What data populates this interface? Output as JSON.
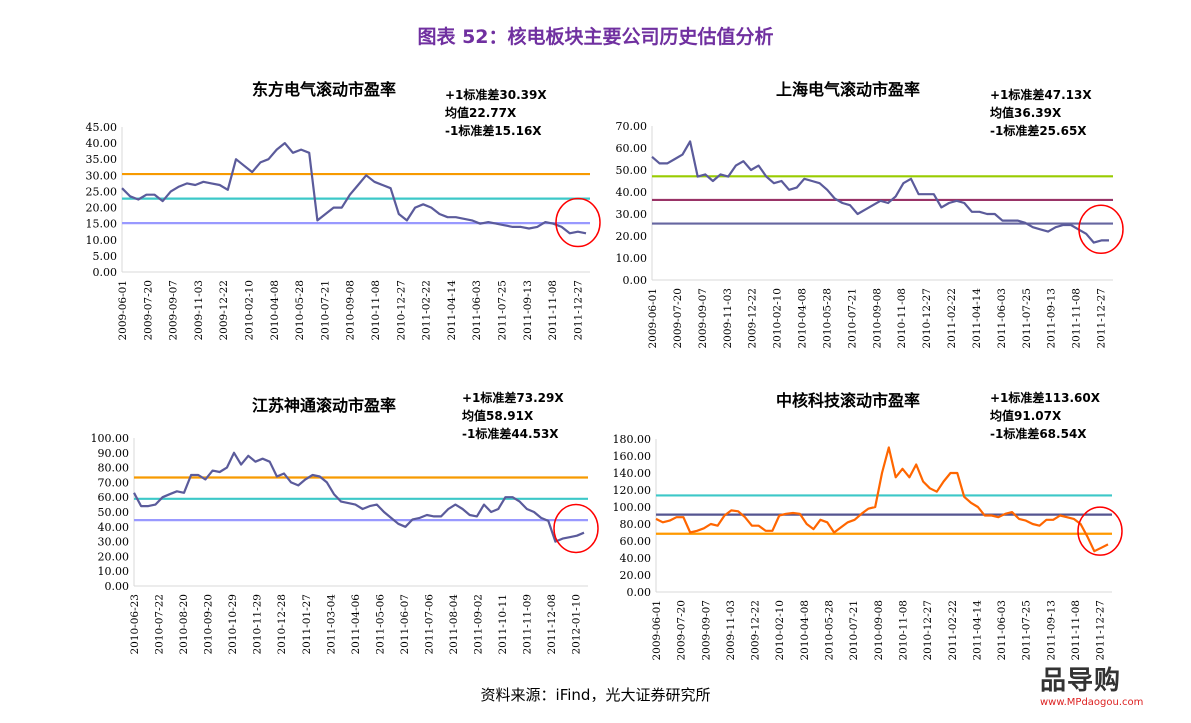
{
  "title": "图表 52：核电板块主要公司历史估值分析",
  "source": "资料来源：iFind，光大证券研究所",
  "watermark": {
    "logo": "品导购",
    "url": "www.MPdaogou.com"
  },
  "chart_data": [
    {
      "type": "line",
      "title": "东方电气滚动市盈率",
      "annotations": [
        "+1标准差30.39X",
        "均值22.77X",
        "-1标准差15.16X"
      ],
      "ylim": [
        0,
        45
      ],
      "ystep": 5,
      "x_ticks": [
        "2009-06-01",
        "2009-07-20",
        "2009-09-07",
        "2009-11-03",
        "2009-12-22",
        "2010-02-10",
        "2010-04-08",
        "2010-05-28",
        "2010-07-21",
        "2010-09-08",
        "2010-11-08",
        "2010-12-27",
        "2011-02-22",
        "2011-04-14",
        "2011-06-03",
        "2011-07-25",
        "2011-09-13",
        "2011-11-08",
        "2011-12-27"
      ],
      "reference_lines": [
        {
          "label": "+1标准差",
          "value": 30.39,
          "color": "#f79a00"
        },
        {
          "label": "均值",
          "value": 22.77,
          "color": "#3cc8c8"
        },
        {
          "label": "-1标准差",
          "value": 15.16,
          "color": "#9999ff"
        }
      ],
      "series_color": "#5b5b9b",
      "values": [
        26,
        23.5,
        22.5,
        24,
        24,
        22,
        25,
        26.5,
        27.5,
        27,
        28,
        27.5,
        27,
        25.5,
        35,
        33,
        31,
        34,
        35,
        38,
        40,
        37,
        38,
        37,
        16,
        18,
        20,
        20,
        24,
        27,
        30,
        28,
        27,
        26,
        18,
        16,
        20,
        21,
        20,
        18,
        17,
        17,
        16.5,
        16,
        15,
        15.5,
        15,
        14.5,
        14,
        14,
        13.5,
        14,
        15.5,
        15,
        14,
        12,
        12.5,
        12
      ],
      "highlight": "red-circle-latest"
    },
    {
      "type": "line",
      "title": "上海电气滚动市盈率",
      "annotations": [
        "+1标准差47.13X",
        "均值36.39X",
        "-1标准差25.65X"
      ],
      "ylim": [
        0,
        70
      ],
      "ystep": 10,
      "x_ticks": [
        "2009-06-01",
        "2009-07-20",
        "2009-09-07",
        "2009-11-03",
        "2009-12-22",
        "2010-02-10",
        "2010-04-08",
        "2010-05-28",
        "2010-07-21",
        "2010-09-08",
        "2010-11-08",
        "2010-12-27",
        "2011-02-22",
        "2011-04-14",
        "2011-06-03",
        "2011-07-25",
        "2011-09-13",
        "2011-11-08",
        "2011-12-27"
      ],
      "reference_lines": [
        {
          "label": "+1标准差",
          "value": 47.13,
          "color": "#99cc00"
        },
        {
          "label": "均值",
          "value": 36.39,
          "color": "#993366"
        },
        {
          "label": "-1标准差",
          "value": 25.65,
          "color": "#6666a0"
        }
      ],
      "series_color": "#5b5b9b",
      "values": [
        56,
        53,
        53,
        55,
        57,
        63,
        47,
        48,
        45,
        48,
        47,
        52,
        54,
        50,
        52,
        47,
        44,
        45,
        41,
        42,
        46,
        45,
        44,
        41,
        37,
        35,
        34,
        30,
        32,
        34,
        36,
        35,
        38,
        44,
        46,
        39,
        39,
        39,
        33,
        35,
        36,
        35,
        31,
        31,
        30,
        30,
        27,
        27,
        27,
        26,
        24,
        23,
        22,
        24,
        25,
        25,
        23,
        21,
        17,
        18,
        18
      ],
      "highlight": "red-circle-latest"
    },
    {
      "type": "line",
      "title": "江苏神通滚动市盈率",
      "annotations": [
        "+1标准差73.29X",
        "均值58.91X",
        "-1标准差44.53X"
      ],
      "ylim": [
        0,
        100
      ],
      "ystep": 10,
      "x_ticks": [
        "2010-06-23",
        "2010-07-22",
        "2010-08-20",
        "2010-09-20",
        "2010-10-29",
        "2010-11-29",
        "2010-12-28",
        "2011-01-27",
        "2011-03-04",
        "2011-04-06",
        "2011-05-06",
        "2011-06-07",
        "2011-07-06",
        "2011-08-04",
        "2011-09-02",
        "2011-10-11",
        "2011-11-09",
        "2011-12-08",
        "2012-01-10"
      ],
      "reference_lines": [
        {
          "label": "+1标准差",
          "value": 73.29,
          "color": "#f79a00"
        },
        {
          "label": "均值",
          "value": 58.91,
          "color": "#3cc8c8"
        },
        {
          "label": "-1标准差",
          "value": 44.53,
          "color": "#9999ff"
        }
      ],
      "series_color": "#5b5b9b",
      "values": [
        63,
        54,
        54,
        55,
        60,
        62,
        64,
        63,
        75,
        75,
        72,
        78,
        77,
        80,
        90,
        82,
        88,
        84,
        86,
        84,
        74,
        76,
        70,
        68,
        72,
        75,
        74,
        70,
        62,
        57,
        56,
        55,
        52,
        54,
        55,
        50,
        46,
        42,
        40,
        45,
        46,
        48,
        47,
        47,
        52,
        55,
        52,
        48,
        47,
        55,
        50,
        52,
        60,
        60,
        57,
        52,
        50,
        46,
        44,
        30,
        32,
        33,
        34,
        36
      ],
      "highlight": "red-circle-latest"
    },
    {
      "type": "line",
      "title": "中核科技滚动市盈率",
      "annotations": [
        "+1标准差113.60X",
        "均值91.07X",
        "-1标准差68.54X"
      ],
      "ylim": [
        0,
        180
      ],
      "ystep": 20,
      "x_ticks": [
        "2009-06-01",
        "2009-07-20",
        "2009-09-07",
        "2009-11-03",
        "2009-12-22",
        "2010-02-10",
        "2010-04-08",
        "2010-05-28",
        "2010-07-21",
        "2010-09-08",
        "2010-11-08",
        "2010-12-27",
        "2011-02-22",
        "2011-04-14",
        "2011-06-03",
        "2011-07-25",
        "2011-09-13",
        "2011-11-08",
        "2011-12-27"
      ],
      "reference_lines": [
        {
          "label": "+1标准差",
          "value": 113.6,
          "color": "#3cc8c8"
        },
        {
          "label": "均值",
          "value": 91.07,
          "color": "#555590"
        },
        {
          "label": "-1标准差",
          "value": 68.54,
          "color": "#ff9900"
        }
      ],
      "series_color": "#ff6600",
      "values": [
        86,
        82,
        84,
        88,
        88,
        70,
        72,
        75,
        80,
        78,
        90,
        96,
        95,
        88,
        78,
        78,
        72,
        72,
        90,
        92,
        93,
        92,
        80,
        74,
        85,
        82,
        70,
        76,
        82,
        85,
        92,
        98,
        100,
        140,
        170,
        135,
        145,
        135,
        150,
        130,
        122,
        118,
        130,
        140,
        140,
        112,
        105,
        100,
        90,
        90,
        88,
        92,
        94,
        86,
        84,
        80,
        78,
        85,
        85,
        90,
        88,
        86,
        80,
        65,
        48,
        52,
        56
      ],
      "highlight": "red-circle-latest"
    }
  ]
}
